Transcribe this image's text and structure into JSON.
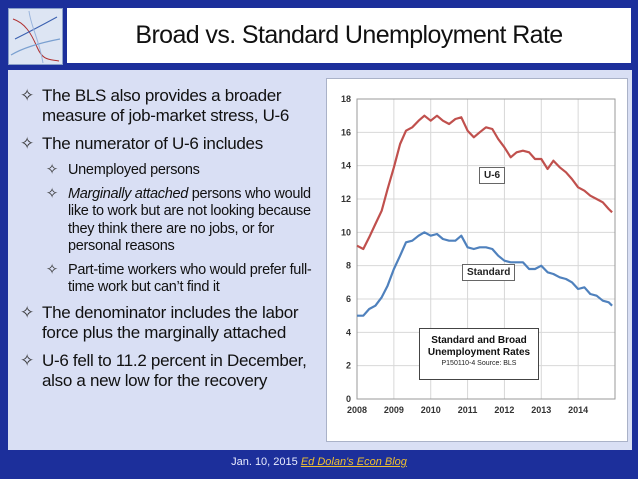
{
  "title": "Broad vs. Standard Unemployment Rate",
  "bullets": [
    {
      "level": 1,
      "text": "The BLS also provides a broader measure of job-market stress, U-6"
    },
    {
      "level": 1,
      "text": "The numerator of U-6 includes"
    },
    {
      "level": 2,
      "text": "Unemployed persons"
    },
    {
      "level": 2,
      "italic": "Marginally attached",
      "text": " persons who would like to work but are not looking because they think there are no jobs, or for personal reasons"
    },
    {
      "level": 2,
      "text": "Part-time workers who would prefer full-time work but can’t find it"
    },
    {
      "level": 1,
      "text": "The denominator includes the labor force plus the marginally attached"
    },
    {
      "level": 1,
      "text": "U-6 fell to 11.2 percent in December, also a new low for the recovery"
    }
  ],
  "bullet_glyph": "✧",
  "footer": {
    "date": "Jan. 10, 2015",
    "link": "Ed Dolan's Econ Blog"
  },
  "chart_data": {
    "type": "line",
    "title": "Standard and Broad Unemployment Rates",
    "subtitle": "P150110-4 Source: BLS",
    "x_ticks": [
      "2008",
      "2009",
      "2010",
      "2011",
      "2012",
      "2013",
      "2014"
    ],
    "y_ticks": [
      "0",
      "2",
      "4",
      "6",
      "8",
      "10",
      "12",
      "14",
      "16",
      "18"
    ],
    "ylim": [
      0,
      18
    ],
    "xlim": [
      2008,
      2015
    ],
    "series": [
      {
        "name": "U-6",
        "color": "#c0504d",
        "points": [
          [
            2008.0,
            9.2
          ],
          [
            2008.17,
            9.0
          ],
          [
            2008.33,
            9.7
          ],
          [
            2008.5,
            10.5
          ],
          [
            2008.67,
            11.3
          ],
          [
            2008.83,
            12.6
          ],
          [
            2009.0,
            13.9
          ],
          [
            2009.17,
            15.3
          ],
          [
            2009.33,
            16.1
          ],
          [
            2009.5,
            16.3
          ],
          [
            2009.67,
            16.7
          ],
          [
            2009.83,
            17.0
          ],
          [
            2010.0,
            16.7
          ],
          [
            2010.17,
            17.0
          ],
          [
            2010.33,
            16.7
          ],
          [
            2010.5,
            16.5
          ],
          [
            2010.67,
            16.8
          ],
          [
            2010.83,
            16.9
          ],
          [
            2011.0,
            16.1
          ],
          [
            2011.17,
            15.7
          ],
          [
            2011.33,
            16.0
          ],
          [
            2011.5,
            16.3
          ],
          [
            2011.67,
            16.2
          ],
          [
            2011.83,
            15.6
          ],
          [
            2012.0,
            15.1
          ],
          [
            2012.17,
            14.5
          ],
          [
            2012.33,
            14.8
          ],
          [
            2012.5,
            14.9
          ],
          [
            2012.67,
            14.8
          ],
          [
            2012.83,
            14.4
          ],
          [
            2013.0,
            14.4
          ],
          [
            2013.17,
            13.8
          ],
          [
            2013.33,
            14.3
          ],
          [
            2013.5,
            13.9
          ],
          [
            2013.67,
            13.6
          ],
          [
            2013.83,
            13.2
          ],
          [
            2014.0,
            12.7
          ],
          [
            2014.17,
            12.5
          ],
          [
            2014.33,
            12.2
          ],
          [
            2014.5,
            12.0
          ],
          [
            2014.67,
            11.8
          ],
          [
            2014.83,
            11.4
          ],
          [
            2014.92,
            11.2
          ]
        ]
      },
      {
        "name": "Standard",
        "color": "#4f81bd",
        "points": [
          [
            2008.0,
            5.0
          ],
          [
            2008.17,
            5.0
          ],
          [
            2008.33,
            5.4
          ],
          [
            2008.5,
            5.6
          ],
          [
            2008.67,
            6.1
          ],
          [
            2008.83,
            6.8
          ],
          [
            2009.0,
            7.8
          ],
          [
            2009.17,
            8.6
          ],
          [
            2009.33,
            9.4
          ],
          [
            2009.5,
            9.5
          ],
          [
            2009.67,
            9.8
          ],
          [
            2009.83,
            10.0
          ],
          [
            2010.0,
            9.8
          ],
          [
            2010.17,
            9.9
          ],
          [
            2010.33,
            9.6
          ],
          [
            2010.5,
            9.5
          ],
          [
            2010.67,
            9.5
          ],
          [
            2010.83,
            9.8
          ],
          [
            2011.0,
            9.1
          ],
          [
            2011.17,
            9.0
          ],
          [
            2011.33,
            9.1
          ],
          [
            2011.5,
            9.1
          ],
          [
            2011.67,
            9.0
          ],
          [
            2011.83,
            8.6
          ],
          [
            2012.0,
            8.3
          ],
          [
            2012.17,
            8.2
          ],
          [
            2012.33,
            8.2
          ],
          [
            2012.5,
            8.2
          ],
          [
            2012.67,
            7.8
          ],
          [
            2012.83,
            7.8
          ],
          [
            2013.0,
            8.0
          ],
          [
            2013.17,
            7.6
          ],
          [
            2013.33,
            7.5
          ],
          [
            2013.5,
            7.3
          ],
          [
            2013.67,
            7.2
          ],
          [
            2013.83,
            7.0
          ],
          [
            2014.0,
            6.6
          ],
          [
            2014.17,
            6.7
          ],
          [
            2014.33,
            6.3
          ],
          [
            2014.5,
            6.2
          ],
          [
            2014.67,
            5.9
          ],
          [
            2014.83,
            5.8
          ],
          [
            2014.92,
            5.6
          ]
        ]
      }
    ]
  }
}
